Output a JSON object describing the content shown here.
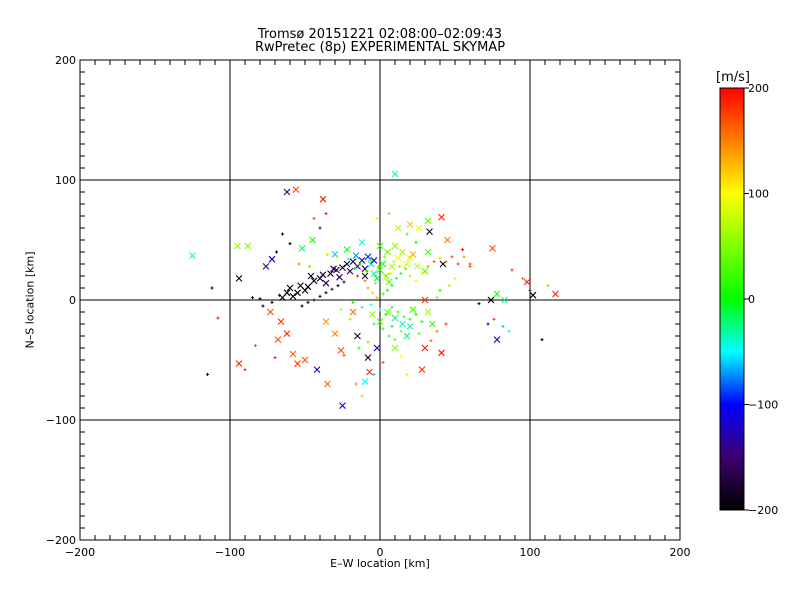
{
  "title": "Tromsø 20151221 02:08:00–02:09:43",
  "subtitle": "RwPretec (8p) EXPERIMENTAL SKYMAP",
  "colorbar": {
    "unit_label": "[m/s]",
    "range": [
      -200,
      200
    ],
    "ticks": [
      "200",
      "100",
      "0",
      "−100",
      "−200"
    ],
    "tick_values": [
      200,
      100,
      0,
      -100,
      -200
    ],
    "colors": [
      "#ff0000",
      "#ffff00",
      "#00ff00",
      "#00ffff",
      "#0000ff",
      "#2a004a",
      "#000000"
    ]
  },
  "chart_data": {
    "type": "scatter",
    "title": "Tromsø 20151221 02:08:00–02:09:43",
    "subtitle": "RwPretec (8p) EXPERIMENTAL SKYMAP",
    "xlabel": "E–W location [km]",
    "ylabel": "N–S location [km]",
    "xlim": [
      -200,
      200
    ],
    "ylim": [
      -200,
      200
    ],
    "xticks": [
      -200,
      -100,
      0,
      100,
      200
    ],
    "yticks": [
      -200,
      -100,
      0,
      100,
      200
    ],
    "xtick_labels": [
      "−200",
      "−100",
      "0",
      "100",
      "200"
    ],
    "ytick_labels": [
      "−200",
      "−100",
      "0",
      "100",
      "200"
    ],
    "grid": true,
    "color_variable": "velocity [m/s]",
    "points": [
      [
        -56,
        92,
        170,
        "x"
      ],
      [
        -62,
        90,
        -150,
        "x"
      ],
      [
        -38,
        84,
        190,
        "x"
      ],
      [
        10,
        105,
        -30,
        "x"
      ],
      [
        -125,
        37,
        -40,
        "x"
      ],
      [
        -95,
        45,
        60,
        "x"
      ],
      [
        -88,
        45,
        50,
        "x"
      ],
      [
        -94,
        18,
        -200,
        "x"
      ],
      [
        -76,
        28,
        -140,
        "x"
      ],
      [
        -72,
        34,
        -100,
        "x"
      ],
      [
        -45,
        50,
        10,
        "x"
      ],
      [
        -52,
        43,
        -20,
        "x"
      ],
      [
        -30,
        38,
        -60,
        "x"
      ],
      [
        -22,
        42,
        -10,
        "x"
      ],
      [
        -12,
        48,
        -40,
        "x"
      ],
      [
        20,
        63,
        120,
        "x"
      ],
      [
        26,
        60,
        90,
        "x"
      ],
      [
        32,
        66,
        40,
        "x"
      ],
      [
        41,
        69,
        180,
        "x"
      ],
      [
        33,
        57,
        -190,
        "x"
      ],
      [
        45,
        50,
        150,
        "x"
      ],
      [
        12,
        60,
        70,
        "x"
      ],
      [
        75,
        43,
        170,
        "x"
      ],
      [
        42,
        30,
        -200,
        "x"
      ],
      [
        32,
        40,
        30,
        "x"
      ],
      [
        30,
        24,
        40,
        "x"
      ],
      [
        20,
        35,
        110,
        "x"
      ],
      [
        -60,
        10,
        -200,
        "x"
      ],
      [
        -55,
        6,
        -200,
        "x"
      ],
      [
        -50,
        8,
        -195,
        "x"
      ],
      [
        -58,
        3,
        -200,
        "x"
      ],
      [
        -53,
        12,
        -190,
        "x"
      ],
      [
        -48,
        11,
        -200,
        "x"
      ],
      [
        -44,
        16,
        -180,
        "x"
      ],
      [
        -40,
        18,
        -200,
        "x"
      ],
      [
        -36,
        14,
        -170,
        "x"
      ],
      [
        -33,
        22,
        -200,
        "x"
      ],
      [
        -29,
        25,
        -180,
        "x"
      ],
      [
        -27,
        19,
        -160,
        "x"
      ],
      [
        -25,
        27,
        -200,
        "x"
      ],
      [
        -22,
        30,
        -170,
        "x"
      ],
      [
        -20,
        24,
        -150,
        "x"
      ],
      [
        -18,
        32,
        -190,
        "x"
      ],
      [
        -15,
        28,
        -160,
        "x"
      ],
      [
        -12,
        33,
        -120,
        "x"
      ],
      [
        -10,
        26,
        -140,
        "x"
      ],
      [
        -8,
        36,
        -90,
        "x"
      ],
      [
        -6,
        30,
        -60,
        "x"
      ],
      [
        -4,
        22,
        -30,
        "x"
      ],
      [
        -2,
        18,
        -10,
        "x"
      ],
      [
        0,
        25,
        20,
        "x"
      ],
      [
        2,
        30,
        10,
        "x"
      ],
      [
        4,
        20,
        40,
        "x"
      ],
      [
        6,
        15,
        30,
        "x"
      ],
      [
        8,
        28,
        60,
        "x"
      ],
      [
        -62,
        6,
        -200,
        "x"
      ],
      [
        -46,
        20,
        -185,
        "x"
      ],
      [
        -38,
        21,
        -175,
        "x"
      ],
      [
        -31,
        26,
        -160,
        "x"
      ],
      [
        -16,
        37,
        -70,
        "x"
      ],
      [
        -4,
        33,
        -100,
        "x"
      ],
      [
        -10,
        20,
        -170,
        "x"
      ],
      [
        -73,
        -10,
        170,
        "x"
      ],
      [
        -66,
        -18,
        180,
        "x"
      ],
      [
        -62,
        -28,
        190,
        "x"
      ],
      [
        -68,
        -33,
        170,
        "x"
      ],
      [
        -94,
        -53,
        190,
        "x"
      ],
      [
        -58,
        -45,
        160,
        "x"
      ],
      [
        -55,
        -53,
        180,
        "x"
      ],
      [
        -50,
        -50,
        170,
        "x"
      ],
      [
        -42,
        -58,
        -130,
        "x"
      ],
      [
        -36,
        -18,
        140,
        "x"
      ],
      [
        -30,
        -28,
        150,
        "x"
      ],
      [
        -26,
        -42,
        170,
        "x"
      ],
      [
        -18,
        -10,
        160,
        "x"
      ],
      [
        -15,
        -30,
        -180,
        "x"
      ],
      [
        -8,
        -48,
        -190,
        "x"
      ],
      [
        -2,
        -40,
        -120,
        "x"
      ],
      [
        -7,
        -60,
        180,
        "x"
      ],
      [
        -10,
        -68,
        -50,
        "x"
      ],
      [
        -25,
        -88,
        -110,
        "x"
      ],
      [
        -35,
        -70,
        160,
        "x"
      ],
      [
        10,
        -40,
        50,
        "x"
      ],
      [
        18,
        -30,
        -20,
        "x"
      ],
      [
        30,
        -40,
        190,
        "x"
      ],
      [
        28,
        -58,
        180,
        "x"
      ],
      [
        41,
        -44,
        190,
        "x"
      ],
      [
        35,
        -20,
        20,
        "x"
      ],
      [
        32,
        -10,
        60,
        "x"
      ],
      [
        30,
        0,
        180,
        "x"
      ],
      [
        -65,
        2,
        -200,
        "x"
      ],
      [
        74,
        0,
        -200,
        "x"
      ],
      [
        78,
        5,
        10,
        "x"
      ],
      [
        83,
        0,
        -30,
        "x"
      ],
      [
        98,
        15,
        190,
        "x"
      ],
      [
        102,
        4,
        -200,
        "x"
      ],
      [
        117,
        5,
        185,
        "x"
      ],
      [
        78,
        -33,
        -130,
        "x"
      ],
      [
        10,
        -15,
        -20,
        "x"
      ],
      [
        15,
        -20,
        -40,
        "x"
      ],
      [
        20,
        -22,
        -30,
        "x"
      ],
      [
        5,
        -10,
        40,
        "x"
      ],
      [
        0,
        -18,
        30,
        "x"
      ],
      [
        -5,
        -12,
        50,
        "x"
      ],
      [
        22,
        -8,
        20,
        "x"
      ],
      [
        10,
        45,
        50,
        "x"
      ],
      [
        15,
        40,
        60,
        "x"
      ],
      [
        18,
        30,
        80,
        "x"
      ],
      [
        22,
        38,
        130,
        "x"
      ],
      [
        12,
        35,
        90,
        "x"
      ],
      [
        5,
        40,
        40,
        "x"
      ],
      [
        0,
        45,
        20,
        "x"
      ],
      [
        25,
        28,
        70,
        "x"
      ],
      [
        -112,
        10,
        -200,
        "+"
      ],
      [
        -115,
        -62,
        -200,
        "+"
      ],
      [
        -108,
        -15,
        190,
        "+"
      ],
      [
        -78,
        -5,
        -200,
        "+"
      ],
      [
        -90,
        -58,
        180,
        "+"
      ],
      [
        -83,
        -38,
        170,
        "+"
      ],
      [
        -70,
        -48,
        190,
        "+"
      ],
      [
        -69,
        40,
        -200,
        "+"
      ],
      [
        -85,
        2,
        -180,
        "+"
      ],
      [
        -80,
        1,
        -190,
        "+"
      ],
      [
        -72,
        -2,
        -195,
        "+"
      ],
      [
        -67,
        4,
        -200,
        "+"
      ],
      [
        -40,
        60,
        -130,
        "+"
      ],
      [
        -54,
        30,
        150,
        "+"
      ],
      [
        -47,
        28,
        40,
        "+"
      ],
      [
        -35,
        38,
        70,
        "+"
      ],
      [
        -28,
        35,
        100,
        "+"
      ],
      [
        -20,
        40,
        90,
        "+"
      ],
      [
        -15,
        20,
        180,
        "+"
      ],
      [
        -10,
        16,
        160,
        "+"
      ],
      [
        -8,
        10,
        140,
        "+"
      ],
      [
        -5,
        6,
        120,
        "+"
      ],
      [
        -2,
        2,
        130,
        "+"
      ],
      [
        2,
        5,
        20,
        "+"
      ],
      [
        5,
        8,
        10,
        "+"
      ],
      [
        8,
        12,
        -10,
        "+"
      ],
      [
        11,
        18,
        -30,
        "+"
      ],
      [
        14,
        22,
        10,
        "+"
      ],
      [
        17,
        26,
        30,
        "+"
      ],
      [
        20,
        20,
        60,
        "+"
      ],
      [
        24,
        16,
        90,
        "+"
      ],
      [
        28,
        22,
        110,
        "+"
      ],
      [
        32,
        28,
        140,
        "+"
      ],
      [
        36,
        32,
        160,
        "+"
      ],
      [
        40,
        35,
        120,
        "+"
      ],
      [
        44,
        32,
        150,
        "+"
      ],
      [
        48,
        36,
        170,
        "+"
      ],
      [
        52,
        30,
        180,
        "+"
      ],
      [
        56,
        36,
        140,
        "+"
      ],
      [
        60,
        28,
        170,
        "+"
      ],
      [
        -18,
        -2,
        0,
        "+"
      ],
      [
        -12,
        -6,
        -30,
        "+"
      ],
      [
        -6,
        -4,
        -50,
        "+"
      ],
      [
        0,
        -8,
        -40,
        "+"
      ],
      [
        4,
        -12,
        10,
        "+"
      ],
      [
        8,
        -6,
        -20,
        "+"
      ],
      [
        12,
        -10,
        30,
        "+"
      ],
      [
        16,
        -14,
        20,
        "+"
      ],
      [
        20,
        -16,
        -10,
        "+"
      ],
      [
        24,
        -12,
        10,
        "+"
      ],
      [
        28,
        -18,
        0,
        "+"
      ],
      [
        -4,
        -20,
        -30,
        "+"
      ],
      [
        2,
        -24,
        20,
        "+"
      ],
      [
        8,
        -22,
        -10,
        "+"
      ],
      [
        14,
        -26,
        40,
        "+"
      ],
      [
        -20,
        -16,
        50,
        "+"
      ],
      [
        -26,
        -8,
        70,
        "+"
      ],
      [
        -24,
        -46,
        170,
        "+"
      ],
      [
        -16,
        -70,
        150,
        "+"
      ],
      [
        -12,
        -80,
        120,
        "+"
      ],
      [
        -4,
        -62,
        -60,
        "+"
      ],
      [
        2,
        -52,
        170,
        "+"
      ],
      [
        14,
        -47,
        100,
        "+"
      ],
      [
        18,
        -62,
        80,
        "+"
      ],
      [
        -52,
        -5,
        -200,
        "+"
      ],
      [
        -48,
        -2,
        -200,
        "+"
      ],
      [
        -44,
        0,
        -190,
        "+"
      ],
      [
        -40,
        3,
        -180,
        "+"
      ],
      [
        -36,
        6,
        -200,
        "+"
      ],
      [
        -32,
        9,
        -170,
        "+"
      ],
      [
        -28,
        12,
        -190,
        "+"
      ],
      [
        -24,
        15,
        -160,
        "+"
      ],
      [
        66,
        -3,
        -200,
        "+"
      ],
      [
        72,
        -20,
        -130,
        "+"
      ],
      [
        76,
        -16,
        180,
        "+"
      ],
      [
        82,
        -22,
        -60,
        "+"
      ],
      [
        86,
        -26,
        -40,
        "+"
      ],
      [
        88,
        25,
        180,
        "+"
      ],
      [
        95,
        18,
        150,
        "+"
      ],
      [
        108,
        -33,
        -200,
        "+"
      ],
      [
        112,
        12,
        130,
        "+"
      ],
      [
        100,
        8,
        -150,
        "+"
      ],
      [
        60,
        30,
        170,
        "+"
      ],
      [
        55,
        42,
        200,
        "+"
      ],
      [
        40,
        8,
        20,
        "+"
      ],
      [
        46,
        12,
        60,
        "+"
      ],
      [
        50,
        18,
        110,
        "+"
      ],
      [
        38,
        2,
        50,
        "+"
      ],
      [
        -60,
        47,
        -200,
        "+"
      ],
      [
        -65,
        55,
        -200,
        "+"
      ],
      [
        -44,
        68,
        170,
        "+"
      ],
      [
        -36,
        72,
        190,
        "+"
      ],
      [
        -2,
        68,
        110,
        "+"
      ],
      [
        6,
        72,
        30,
        "+"
      ],
      [
        18,
        55,
        20,
        "+"
      ],
      [
        24,
        48,
        0,
        "+"
      ],
      [
        -3,
        14,
        60,
        "+"
      ],
      [
        3,
        18,
        90,
        "+"
      ],
      [
        7,
        22,
        70,
        "+"
      ],
      [
        -1,
        28,
        40,
        "+"
      ],
      [
        -6,
        33,
        10,
        "+"
      ],
      [
        3,
        36,
        50,
        "+"
      ],
      [
        9,
        32,
        80,
        "+"
      ],
      [
        13,
        28,
        60,
        "+"
      ],
      [
        -9,
        24,
        30,
        "+"
      ],
      [
        -13,
        30,
        20,
        "+"
      ],
      [
        -17,
        26,
        -20,
        "+"
      ],
      [
        -21,
        34,
        -50,
        "+"
      ],
      [
        6,
        -30,
        -20,
        "+"
      ],
      [
        10,
        -33,
        30,
        "+"
      ],
      [
        -8,
        -35,
        40,
        "+"
      ],
      [
        -14,
        -40,
        10,
        "+"
      ],
      [
        26,
        -28,
        30,
        "+"
      ],
      [
        34,
        -34,
        160,
        "+"
      ],
      [
        38,
        -26,
        150,
        "+"
      ],
      [
        44,
        -20,
        180,
        "+"
      ]
    ]
  }
}
